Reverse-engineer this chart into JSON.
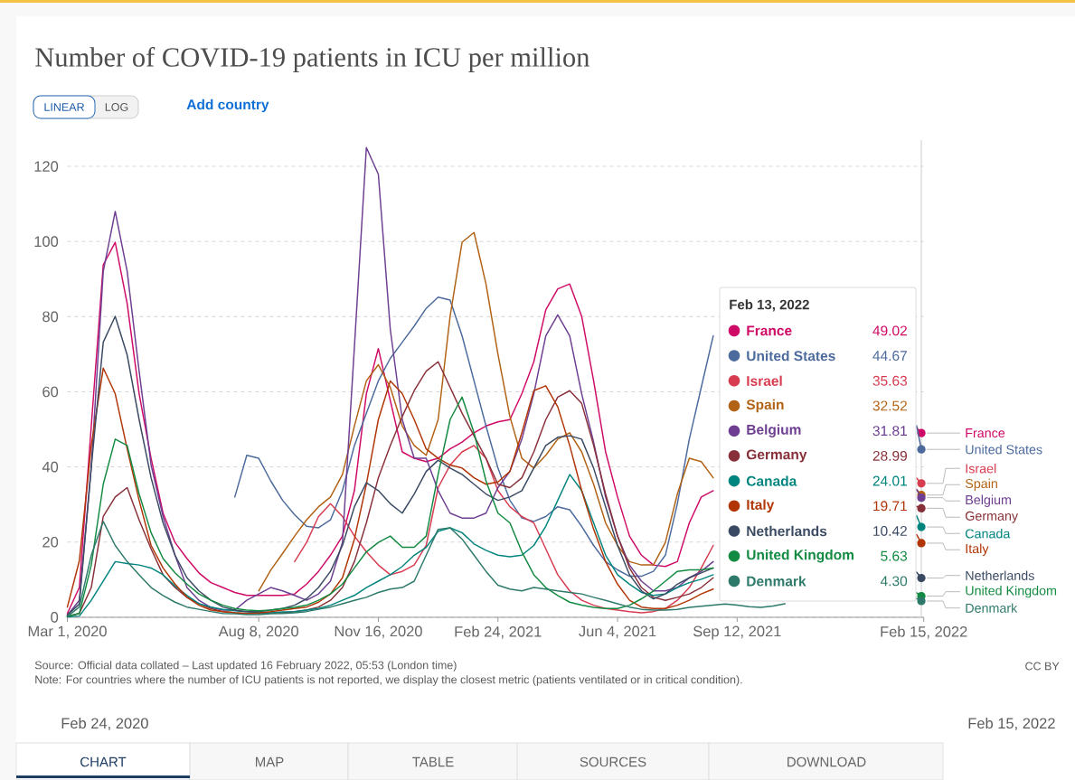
{
  "chart_data": {
    "type": "line",
    "title": "Number of COVID-19 patients in ICU per million",
    "x": [
      "2020-03-01",
      "2020-03-11",
      "2020-03-21",
      "2020-03-31",
      "2020-04-10",
      "2020-04-20",
      "2020-04-30",
      "2020-05-10",
      "2020-05-20",
      "2020-05-30",
      "2020-06-09",
      "2020-06-19",
      "2020-06-29",
      "2020-07-09",
      "2020-07-19",
      "2020-07-29",
      "2020-08-08",
      "2020-08-18",
      "2020-08-28",
      "2020-09-07",
      "2020-09-17",
      "2020-09-27",
      "2020-10-07",
      "2020-10-17",
      "2020-10-27",
      "2020-11-06",
      "2020-11-16",
      "2020-11-26",
      "2020-12-06",
      "2020-12-16",
      "2020-12-26",
      "2021-01-05",
      "2021-01-15",
      "2021-01-25",
      "2021-02-04",
      "2021-02-14",
      "2021-02-24",
      "2021-03-06",
      "2021-03-16",
      "2021-03-26",
      "2021-04-05",
      "2021-04-15",
      "2021-04-25",
      "2021-05-05",
      "2021-05-15",
      "2021-05-25",
      "2021-06-04",
      "2021-06-14",
      "2021-06-24",
      "2021-07-04",
      "2021-07-14",
      "2021-07-24",
      "2021-08-03",
      "2021-08-13",
      "2021-08-23",
      "2021-09-02",
      "2021-09-12",
      "2021-09-22",
      "2021-10-02",
      "2021-10-12",
      "2021-10-22",
      "2021-11-01",
      "2021-11-11",
      "2021-11-21",
      "2021-12-01",
      "2021-12-11",
      "2021-12-21",
      "2021-12-31",
      "2022-01-10",
      "2022-01-20",
      "2022-01-30",
      "2022-02-09",
      "2022-02-13"
    ],
    "series": [
      {
        "name": "France",
        "color": "#cf0a66",
        "values": [
          1,
          7.9,
          50.9,
          93.8,
          99.8,
          83.5,
          59.5,
          42.3,
          27.7,
          19.9,
          15.6,
          11.8,
          9.2,
          7.9,
          6.6,
          5.8,
          5.8,
          5.8,
          5.8,
          6.2,
          8.8,
          12.2,
          16.5,
          21.6,
          33.7,
          59.5,
          71.5,
          57.7,
          44.0,
          42.3,
          41.4,
          42.3,
          44.8,
          46.6,
          49.1,
          50.9,
          52,
          52.6,
          59.5,
          68,
          81.8,
          87.4,
          88.7,
          80.1,
          62.9,
          44.0,
          32.0,
          21.6,
          16.5,
          13.9,
          13.5,
          14.8,
          25.1,
          32.0,
          33.7,
          null,
          null,
          null,
          null,
          null,
          null,
          null,
          null,
          null,
          null,
          null,
          null,
          null,
          null,
          null,
          null,
          50.5,
          49.02
        ]
      },
      {
        "name": "United States",
        "color": "#4c6a9c",
        "values": [
          null,
          null,
          null,
          null,
          null,
          null,
          null,
          null,
          null,
          null,
          null,
          null,
          null,
          null,
          32.0,
          43.1,
          42.3,
          36.3,
          31.1,
          27.3,
          24.2,
          23.8,
          25.9,
          33.7,
          45.7,
          54.3,
          62.9,
          68.9,
          73.2,
          77.5,
          82.2,
          85.2,
          84.4,
          74.9,
          62.9,
          50.9,
          39.7,
          31.1,
          26.4,
          25.5,
          26.8,
          29.4,
          28.6,
          24.2,
          19.1,
          14.8,
          12.6,
          10.9,
          10.9,
          12.2,
          16.5,
          30.2,
          47.4,
          61.2,
          74.9,
          null,
          null,
          null,
          null,
          null,
          null,
          null,
          null,
          null,
          null,
          null,
          null,
          null,
          null,
          null,
          null,
          51,
          44.67
        ]
      },
      {
        "name": "Israel",
        "color": "#d73c50",
        "values": [
          null,
          null,
          null,
          null,
          null,
          null,
          null,
          null,
          null,
          null,
          null,
          null,
          null,
          null,
          null,
          null,
          null,
          null,
          null,
          14.8,
          19.9,
          26.8,
          30.2,
          26.8,
          21.6,
          17.4,
          13.9,
          11.3,
          12.2,
          13.9,
          19.1,
          34.5,
          40.5,
          44.0,
          45.7,
          42.3,
          33.7,
          29.4,
          26.8,
          25.1,
          18.2,
          11.3,
          7.0,
          4.5,
          3.2,
          2.3,
          1.9,
          1.5,
          1.2,
          1.5,
          2.3,
          4.5,
          7.9,
          13.1,
          19.1,
          null,
          null,
          null,
          null,
          null,
          null,
          null,
          null,
          null,
          null,
          null,
          null,
          null,
          null,
          null,
          null,
          37,
          35.63
        ]
      },
      {
        "name": "Spain",
        "color": "#b16214",
        "values": [
          null,
          null,
          null,
          null,
          null,
          null,
          null,
          null,
          null,
          null,
          null,
          null,
          null,
          null,
          null,
          null,
          7,
          12.5,
          17,
          21.6,
          25.9,
          29.4,
          32.0,
          38.0,
          50.9,
          62.9,
          67.2,
          61.2,
          50.9,
          45.7,
          43.1,
          52.6,
          80.1,
          99.8,
          102.4,
          88.7,
          70,
          53.4,
          42.3,
          39.7,
          43.1,
          47.4,
          49.1,
          44.0,
          35.4,
          25.1,
          19.1,
          14.8,
          13.9,
          13.9,
          19.9,
          32.8,
          42.3,
          41.4,
          37.1,
          null,
          null,
          null,
          null,
          null,
          null,
          null,
          null,
          null,
          null,
          null,
          null,
          null,
          null,
          null,
          null,
          34,
          32.52
        ]
      },
      {
        "name": "Belgium",
        "color": "#6d3e91",
        "values": [
          0.5,
          4.5,
          40,
          92,
          108,
          92.1,
          65.5,
          40.5,
          26.8,
          16.5,
          7.9,
          4.5,
          2.6,
          1.9,
          1.9,
          4.5,
          6.2,
          7.9,
          7,
          5.8,
          4.5,
          6.2,
          9.6,
          19.9,
          72,
          125,
          117.9,
          76.6,
          52.6,
          42.3,
          42.3,
          33.7,
          27.7,
          26.4,
          26.4,
          27.7,
          34.5,
          38.8,
          47.4,
          59.5,
          74.9,
          80.5,
          74.9,
          59.5,
          46.6,
          32,
          21.6,
          13.9,
          9.6,
          7.0,
          7.0,
          7.9,
          10.5,
          12.2,
          14.8,
          null,
          null,
          null,
          null,
          null,
          null,
          null,
          null,
          null,
          null,
          null,
          null,
          null,
          null,
          null,
          null,
          34,
          31.81
        ]
      },
      {
        "name": "Germany",
        "color": "#883039",
        "values": [
          0.2,
          1.0,
          7.9,
          26.8,
          32.0,
          34.5,
          25.9,
          18.2,
          11.3,
          7.9,
          5.3,
          3.6,
          2.3,
          1.5,
          1.2,
          1.0,
          1.0,
          1.2,
          1.2,
          1.5,
          1.9,
          2.7,
          4.5,
          7.9,
          14.8,
          25.1,
          37.1,
          45.7,
          53.4,
          60.3,
          65.5,
          68.0,
          61.2,
          54.3,
          48.3,
          42.3,
          35.4,
          34.5,
          37.1,
          44.0,
          52.6,
          58.6,
          60.3,
          56.9,
          45.7,
          32.8,
          21.6,
          13.1,
          7.9,
          5.3,
          4.5,
          5.3,
          6.2,
          7.9,
          10.5,
          null,
          null,
          null,
          null,
          null,
          null,
          null,
          null,
          null,
          null,
          null,
          null,
          null,
          null,
          null,
          null,
          29.5,
          28.99
        ]
      },
      {
        "name": "Canada",
        "color": "#00847e",
        "values": [
          0.1,
          0.3,
          4.5,
          9.6,
          14.8,
          14.3,
          13.9,
          13.1,
          11.3,
          8.3,
          5.8,
          3.6,
          2.7,
          2.1,
          1.7,
          1.5,
          1.2,
          1.2,
          1.4,
          1.5,
          1.9,
          2.3,
          3.2,
          4.5,
          5.8,
          7.9,
          9.6,
          11.3,
          13.5,
          16.5,
          18.6,
          22.9,
          23.8,
          22.5,
          19.5,
          17.8,
          16.5,
          16.1,
          16.5,
          19.1,
          24.2,
          31.1,
          38.0,
          33.7,
          25.1,
          16.5,
          11.3,
          8.8,
          6.6,
          5.8,
          6.2,
          7.9,
          9.2,
          10.1,
          11.3,
          null,
          null,
          null,
          null,
          null,
          null,
          null,
          null,
          null,
          null,
          null,
          null,
          null,
          null,
          null,
          null,
          27,
          24.01
        ]
      },
      {
        "name": "Italy",
        "color": "#b13507",
        "values": [
          2.7,
          15,
          45.7,
          66.3,
          59.5,
          44.8,
          31.1,
          19.1,
          13.1,
          8.8,
          5.3,
          3.2,
          1.9,
          1.5,
          1.2,
          1.0,
          1.2,
          1.5,
          1.9,
          2.3,
          2.7,
          4.0,
          6.2,
          10.5,
          20.8,
          35.4,
          52.6,
          62.9,
          59.5,
          52.6,
          44.8,
          42.3,
          40.5,
          39.7,
          37.1,
          35.4,
          36,
          38.8,
          49.1,
          60.3,
          61.6,
          56.0,
          45.7,
          33.7,
          23.4,
          14.8,
          8.8,
          4.5,
          2.7,
          2.3,
          2.3,
          3.2,
          4.5,
          6.2,
          7.5,
          null,
          null,
          null,
          null,
          null,
          null,
          null,
          null,
          null,
          null,
          null,
          null,
          null,
          null,
          null,
          null,
          22,
          19.71
        ]
      },
      {
        "name": "Netherlands",
        "color": "#3b4a63",
        "values": [
          0.6,
          3.5,
          40,
          73.2,
          80.1,
          69.8,
          52.6,
          37.1,
          25.1,
          16.5,
          10.5,
          7.0,
          4.5,
          2.7,
          1.9,
          1.5,
          1.5,
          1.9,
          2.3,
          3.2,
          4.9,
          7.9,
          12.2,
          19.1,
          29.4,
          35.8,
          33.7,
          30.2,
          27.7,
          32.8,
          38.8,
          41.8,
          39.7,
          38.0,
          35.4,
          32.8,
          31.1,
          32.0,
          33.7,
          39.7,
          45.7,
          47.9,
          48.3,
          47.4,
          39.7,
          29.4,
          19.1,
          11.3,
          7.0,
          4.9,
          6.2,
          8.8,
          10.5,
          11.8,
          13.1,
          null,
          null,
          null,
          null,
          null,
          null,
          null,
          null,
          null,
          null,
          null,
          null,
          null,
          null,
          null,
          null,
          12,
          10.42
        ]
      },
      {
        "name": "United Kingdom",
        "color": "#138a41",
        "values": [
          0.2,
          1.0,
          13.9,
          35.4,
          47.4,
          45.7,
          32.8,
          22.5,
          15.6,
          11.8,
          8.8,
          6.2,
          4.5,
          3.2,
          2.3,
          1.9,
          1.7,
          1.9,
          2.3,
          2.6,
          3.2,
          4.5,
          6.2,
          8.8,
          13.1,
          17.4,
          19.9,
          21.6,
          18.6,
          18.6,
          21.6,
          38.0,
          52.6,
          58.6,
          49.1,
          36.3,
          27.7,
          25.1,
          17.4,
          11.3,
          7.9,
          5.8,
          4.0,
          3.2,
          2.6,
          2.3,
          2.3,
          3.2,
          4.9,
          7.0,
          9.6,
          12.2,
          12.6,
          12.6,
          13.1,
          null,
          null,
          null,
          null,
          null,
          null,
          null,
          null,
          null,
          null,
          null,
          null,
          null,
          null,
          null,
          null,
          6.5,
          5.63
        ]
      },
      {
        "name": "Denmark",
        "color": "#2d7a6a",
        "values": [
          0.2,
          2.7,
          16.5,
          25.5,
          19.1,
          14.8,
          11.3,
          7.9,
          5.8,
          4.0,
          2.7,
          2.1,
          1.5,
          1.0,
          0.9,
          0.7,
          0.7,
          0.9,
          1.0,
          1.2,
          1.5,
          2.1,
          2.7,
          3.6,
          4.5,
          5.3,
          6.6,
          7.5,
          7.9,
          9.6,
          16.5,
          23.4,
          23.8,
          20.8,
          16.5,
          12.2,
          8.5,
          7.5,
          7.0,
          7.9,
          7.5,
          7.0,
          6.6,
          6.2,
          5.3,
          4.5,
          3.6,
          2.7,
          2.1,
          1.9,
          1.9,
          2.1,
          2.6,
          2.9,
          3.2,
          3.5,
          3.2,
          2.8,
          2.6,
          3.0,
          3.6,
          null,
          null,
          null,
          null,
          null,
          null,
          null,
          null,
          null,
          null,
          5,
          4.3
        ]
      }
    ],
    "xlim": [
      "2020-03-01",
      "2022-02-15"
    ],
    "xticks": [
      {
        "value": "2020-03-01",
        "label": "Mar 1, 2020"
      },
      {
        "value": "2020-08-08",
        "label": "Aug 8, 2020"
      },
      {
        "value": "2020-11-16",
        "label": "Nov 16, 2020"
      },
      {
        "value": "2021-02-24",
        "label": "Feb 24, 2021"
      },
      {
        "value": "2021-06-04",
        "label": "Jun 4, 2021"
      },
      {
        "value": "2021-09-12",
        "label": "Sep 12, 2021"
      },
      {
        "value": "2022-02-15",
        "label": "Feb 15, 2022"
      }
    ],
    "ylim": [
      0,
      127
    ],
    "yticks": [
      0,
      20,
      40,
      60,
      80,
      100,
      120
    ],
    "grid": "y",
    "legend": "right",
    "legend_title": "Feb 13, 2022",
    "ref_lines": [
      {
        "axis": "x",
        "value": "2022-02-13"
      }
    ],
    "annotations": [
      "49.02",
      "44.67",
      "35.63",
      "32.52",
      "31.81",
      "28.99",
      "24.01",
      "19.71",
      "10.42",
      "5.63",
      "4.30",
      "Source: Official data collated – Last updated 16 February 2022, 05:53 (London time)",
      "Note: For countries where the number of ICU patients is not reported, we display the closest metric (patients ventilated or in critical condition).",
      "CC BY",
      "LINEAR",
      "LOG",
      "Add country",
      "Feb 24, 2020",
      "Feb 15, 2022",
      "CHART",
      "MAP",
      "TABLE",
      "SOURCES",
      "DOWNLOAD"
    ]
  }
}
